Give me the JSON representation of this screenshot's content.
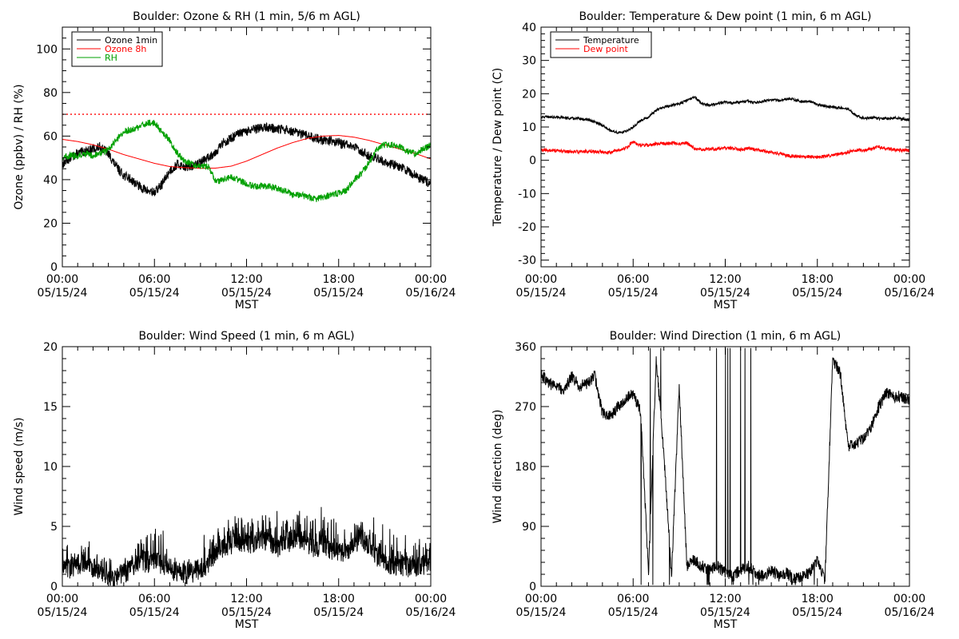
{
  "chart_data": [
    {
      "type": "line",
      "title": "Boulder: Ozone & RH (1 min, 5/6 m AGL)",
      "ylabel": "Ozone (ppbv) / RH (%)",
      "xlabel": "MST",
      "x_ticks": [
        {
          "line1": "00:00",
          "line2": "05/15/24"
        },
        {
          "line1": "06:00",
          "line2": "05/15/24"
        },
        {
          "line1": "12:00",
          "line2": "05/15/24"
        },
        {
          "line1": "18:00",
          "line2": "05/15/24"
        },
        {
          "line1": "00:00",
          "line2": "05/16/24"
        }
      ],
      "xlim": [
        0,
        24
      ],
      "ylim": [
        0,
        110
      ],
      "y_ticks": [
        0,
        20,
        40,
        60,
        80,
        100
      ],
      "y_minor_step": 5,
      "legend": {
        "position": "top-left",
        "entries": [
          {
            "label": "Ozone 1min",
            "color": "#000000"
          },
          {
            "label": "Ozone 8h",
            "color": "#ff0000"
          },
          {
            "label": "RH",
            "color": "#00a000"
          }
        ]
      },
      "reference_line": {
        "y": 70,
        "color": "#ff0000",
        "style": "dotted"
      },
      "series": [
        {
          "name": "Ozone 1min",
          "color": "#000000",
          "noise": 2.2,
          "x": [
            0,
            0.5,
            1,
            1.5,
            2,
            2.5,
            3,
            3.5,
            4,
            4.5,
            5,
            5.5,
            6,
            6.5,
            7,
            7.5,
            8,
            8.5,
            9,
            9.5,
            10,
            10.5,
            11,
            11.5,
            12,
            12.5,
            13,
            13.5,
            14,
            14.5,
            15,
            15.5,
            16,
            16.5,
            17,
            17.5,
            18,
            18.5,
            19,
            19.5,
            20,
            20.5,
            21,
            21.5,
            22,
            22.5,
            23,
            23.5,
            24
          ],
          "y": [
            47,
            50,
            52,
            53,
            54,
            55,
            52,
            46,
            42,
            40,
            37,
            35,
            34,
            38,
            44,
            47,
            46,
            46,
            48,
            50,
            53,
            57,
            59,
            61,
            62,
            63,
            64,
            64,
            63,
            63,
            62,
            61,
            60,
            59,
            58,
            58,
            57,
            56,
            55,
            53,
            51,
            50,
            48,
            47,
            46,
            44,
            42,
            40,
            38
          ]
        },
        {
          "name": "Ozone 8h",
          "color": "#ff0000",
          "noise": 0,
          "x": [
            0,
            1,
            2,
            3,
            4,
            5,
            6,
            7,
            8,
            9,
            10,
            11,
            12,
            13,
            14,
            15,
            16,
            17,
            18,
            19,
            20,
            21,
            22,
            23,
            24
          ],
          "y": [
            58.5,
            57.5,
            56,
            54,
            51.5,
            49.5,
            47.5,
            46,
            45.5,
            45.2,
            45.3,
            46.2,
            48.5,
            51.5,
            54.5,
            57,
            59,
            60,
            60.3,
            59.5,
            58,
            56,
            54,
            52,
            49.5
          ]
        },
        {
          "name": "RH",
          "color": "#00a000",
          "noise": 1.5,
          "x": [
            0,
            0.5,
            1,
            1.5,
            2,
            2.5,
            3,
            3.5,
            4,
            4.5,
            5,
            5.5,
            6,
            6.5,
            7,
            7.5,
            8,
            8.5,
            9,
            9.5,
            10,
            10.5,
            11,
            11.5,
            12,
            12.5,
            13,
            13.5,
            14,
            14.5,
            15,
            15.5,
            16,
            16.5,
            17,
            17.5,
            18,
            18.5,
            19,
            19.5,
            20,
            20.5,
            21,
            21.5,
            22,
            22.5,
            23,
            23.5,
            24
          ],
          "y": [
            50,
            51,
            51,
            52,
            51,
            52,
            54,
            58,
            62,
            63,
            64,
            66,
            66,
            62,
            58,
            52,
            48,
            47,
            46,
            46,
            39,
            40,
            41,
            40,
            38,
            37,
            37,
            37,
            36,
            35,
            33,
            33,
            32,
            31,
            32,
            33,
            34,
            35,
            40,
            43,
            48,
            54,
            56,
            56,
            55,
            53,
            52,
            54,
            56
          ]
        }
      ]
    },
    {
      "type": "line",
      "title": "Boulder: Temperature & Dew point (1 min, 6 m AGL)",
      "ylabel": "Temperature / Dew point (C)",
      "xlabel": "MST",
      "x_ticks": [
        {
          "line1": "00:00",
          "line2": "05/15/24"
        },
        {
          "line1": "06:00",
          "line2": "05/15/24"
        },
        {
          "line1": "12:00",
          "line2": "05/15/24"
        },
        {
          "line1": "18:00",
          "line2": "05/15/24"
        },
        {
          "line1": "00:00",
          "line2": "05/16/24"
        }
      ],
      "xlim": [
        0,
        24
      ],
      "ylim": [
        -32,
        40
      ],
      "y_ticks": [
        -30,
        -20,
        -10,
        0,
        10,
        20,
        30,
        40
      ],
      "y_minor_step": 2,
      "legend": {
        "position": "top-left",
        "entries": [
          {
            "label": "Temperature",
            "color": "#000000"
          },
          {
            "label": "Dew point",
            "color": "#ff0000"
          }
        ]
      },
      "series": [
        {
          "name": "Temperature",
          "color": "#000000",
          "noise": 0.4,
          "x": [
            0,
            0.5,
            1,
            1.5,
            2,
            2.5,
            3,
            3.5,
            4,
            4.5,
            5,
            5.5,
            6,
            6.5,
            7,
            7.5,
            8,
            8.5,
            9,
            9.5,
            10,
            10.5,
            11,
            11.5,
            12,
            12.5,
            13,
            13.5,
            14,
            14.5,
            15,
            15.5,
            16,
            16.5,
            17,
            17.5,
            18,
            18.5,
            19,
            19.5,
            20,
            20.5,
            21,
            21.5,
            22,
            22.5,
            23,
            23.5,
            24
          ],
          "y": [
            13,
            13,
            13,
            12.8,
            12.6,
            12.5,
            12.2,
            11.5,
            10.5,
            9,
            8.3,
            8.6,
            10,
            12,
            13,
            15,
            16,
            16.5,
            17,
            18,
            19,
            17,
            16.5,
            17,
            17.5,
            17.2,
            17.5,
            17.8,
            17.2,
            17.8,
            18.2,
            18,
            18.5,
            18.2,
            17.5,
            17.8,
            16.8,
            16.2,
            16,
            15.8,
            15.5,
            13.5,
            12.6,
            12.8,
            12.5,
            12.6,
            12.8,
            12.5,
            12
          ]
        },
        {
          "name": "Dew point",
          "color": "#ff0000",
          "noise": 0.5,
          "x": [
            0,
            0.5,
            1,
            1.5,
            2,
            2.5,
            3,
            3.5,
            4,
            4.5,
            5,
            5.5,
            6,
            6.5,
            7,
            7.5,
            8,
            8.5,
            9,
            9.5,
            10,
            10.5,
            11,
            11.5,
            12,
            12.5,
            13,
            13.5,
            14,
            14.5,
            15,
            15.5,
            16,
            16.5,
            17,
            17.5,
            18,
            18.5,
            19,
            19.5,
            20,
            20.5,
            21,
            21.5,
            22,
            22.5,
            23,
            23.5,
            24
          ],
          "y": [
            3,
            3,
            2.8,
            2.7,
            2.5,
            2.6,
            2.7,
            2.6,
            2.5,
            2.5,
            3,
            3.5,
            5.5,
            4.5,
            4.5,
            5,
            5,
            5.2,
            5,
            5.2,
            3.5,
            3.2,
            3.5,
            3.3,
            3.8,
            3.5,
            3.2,
            3.5,
            3.2,
            2.8,
            2.5,
            2,
            1.5,
            1.2,
            1,
            1.2,
            1,
            1.2,
            1.5,
            2,
            2.5,
            3,
            3,
            3.5,
            4,
            3.5,
            3.2,
            3,
            3
          ]
        }
      ]
    },
    {
      "type": "line",
      "title": "Boulder: Wind Speed (1 min, 6 m AGL)",
      "ylabel": "Wind speed (m/s)",
      "xlabel": "MST",
      "x_ticks": [
        {
          "line1": "00:00",
          "line2": "05/15/24"
        },
        {
          "line1": "06:00",
          "line2": "05/15/24"
        },
        {
          "line1": "12:00",
          "line2": "05/15/24"
        },
        {
          "line1": "18:00",
          "line2": "05/15/24"
        },
        {
          "line1": "00:00",
          "line2": "05/16/24"
        }
      ],
      "xlim": [
        0,
        24
      ],
      "ylim": [
        0,
        20
      ],
      "y_ticks": [
        0,
        5,
        10,
        15,
        20
      ],
      "y_minor_step": 1,
      "series": [
        {
          "name": "Wind speed",
          "color": "#000000",
          "noise": 0.9,
          "x": [
            0,
            0.5,
            1,
            1.5,
            2,
            2.5,
            3,
            3.5,
            4,
            4.5,
            5,
            5.5,
            6,
            6.5,
            7,
            7.5,
            8,
            8.5,
            9,
            9.5,
            10,
            10.5,
            11,
            11.5,
            12,
            12.5,
            13,
            13.5,
            14,
            14.5,
            15,
            15.5,
            16,
            16.5,
            17,
            17.5,
            18,
            18.5,
            19,
            19.5,
            20,
            20.5,
            21,
            21.5,
            22,
            22.5,
            23,
            23.5,
            24
          ],
          "y": [
            1.8,
            1.5,
            1.8,
            2,
            1.5,
            1.2,
            0.8,
            0.6,
            1,
            1.6,
            2.2,
            2,
            2.2,
            1.8,
            1.5,
            1.2,
            1,
            1.1,
            1.5,
            1.8,
            2.8,
            3.2,
            3.5,
            3.8,
            3.6,
            3.5,
            3.8,
            3.5,
            3.2,
            3.5,
            3.8,
            4,
            3.6,
            3.2,
            3.5,
            3,
            2.8,
            3,
            3.5,
            4,
            3.2,
            2.5,
            2,
            1.8,
            1.8,
            1.6,
            1.6,
            1.8,
            2
          ]
        }
      ]
    },
    {
      "type": "line",
      "title": "Boulder: Wind Direction (1 min, 6 m AGL)",
      "ylabel": "Wind direction (deg)",
      "xlabel": "MST",
      "x_ticks": [
        {
          "line1": "00:00",
          "line2": "05/15/24"
        },
        {
          "line1": "06:00",
          "line2": "05/15/24"
        },
        {
          "line1": "12:00",
          "line2": "05/15/24"
        },
        {
          "line1": "18:00",
          "line2": "05/15/24"
        },
        {
          "line1": "00:00",
          "line2": "05/16/24"
        }
      ],
      "xlim": [
        0,
        24
      ],
      "ylim": [
        0,
        360
      ],
      "y_ticks": [
        0,
        90,
        180,
        270,
        360
      ],
      "y_minor_step": 18,
      "series": [
        {
          "name": "Wind direction",
          "color": "#000000",
          "noise": 9,
          "x": [
            0,
            0.5,
            1,
            1.5,
            2,
            2.5,
            3,
            3.5,
            4,
            4.5,
            5,
            5.5,
            6,
            6.5,
            7,
            7.5,
            8,
            8.5,
            9,
            9.5,
            10,
            10.5,
            11,
            11.5,
            12,
            12.5,
            13,
            13.5,
            14,
            14.5,
            15,
            15.5,
            16,
            16.5,
            17,
            17.5,
            18,
            18.5,
            19,
            19.5,
            20,
            20.5,
            21,
            21.5,
            22,
            22.5,
            23,
            23.5,
            24
          ],
          "y": [
            320,
            305,
            300,
            295,
            315,
            300,
            305,
            315,
            260,
            255,
            270,
            280,
            290,
            260,
            20,
            340,
            200,
            15,
            300,
            30,
            40,
            30,
            25,
            30,
            20,
            15,
            25,
            30,
            20,
            15,
            25,
            15,
            20,
            10,
            15,
            20,
            40,
            10,
            340,
            320,
            210,
            215,
            220,
            240,
            270,
            290,
            285,
            285,
            280
          ],
          "wrap_intervals": [
            [
              6.5,
              8.4
            ],
            [
              10.8,
              18.3
            ]
          ]
        }
      ]
    }
  ]
}
